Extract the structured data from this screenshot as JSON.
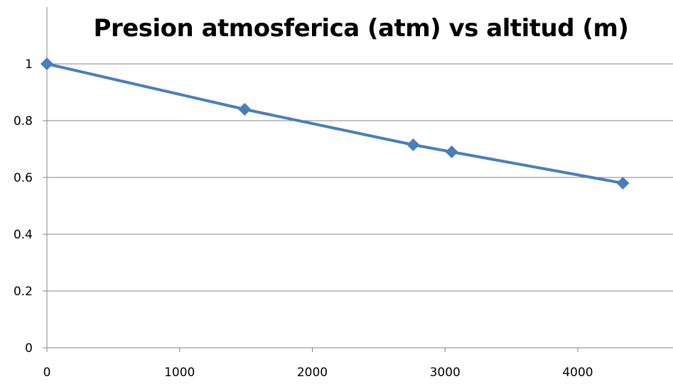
{
  "chart_data": {
    "type": "line",
    "title": "Presion atmosferica (atm) vs altitud (m)",
    "xlabel": "",
    "ylabel": "",
    "xlim": [
      0,
      4700
    ],
    "ylim": [
      0,
      1
    ],
    "x_ticks": [
      0,
      1000,
      2000,
      3000,
      4000
    ],
    "y_ticks": [
      0,
      0.2,
      0.4,
      0.6,
      0.8,
      1
    ],
    "x_tick_labels": [
      "0",
      "1000",
      "2000",
      "3000",
      "4000"
    ],
    "y_tick_labels": [
      "0",
      "0.2",
      "0.4",
      "0.6",
      "0.8",
      "1"
    ],
    "grid": "horizontal",
    "legend": "none",
    "series": [
      {
        "x": [
          0,
          1490,
          2760,
          3050,
          4340
        ],
        "y": [
          1.0,
          0.84,
          0.715,
          0.69,
          0.58
        ],
        "marker": "diamond",
        "color": "#4a7ebb"
      }
    ]
  },
  "colors": {
    "series": "#4a7ebb",
    "grid": "#868686",
    "axis": "#868686"
  }
}
